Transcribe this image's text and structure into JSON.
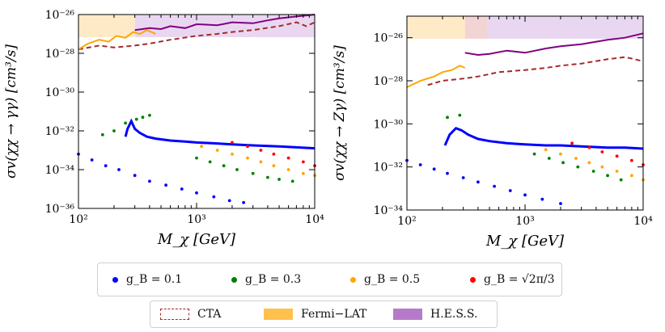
{
  "panels": [
    {
      "id": "left",
      "ylabel": "σv(χχ → γγ) [cm³/s]",
      "xlabel": "M_χ [GeV]",
      "x_ticks": [
        "10^2",
        "10^3",
        "10^4"
      ],
      "y_ticks": [
        "10^-26",
        "10^-28",
        "10^-30",
        "10^-32",
        "10^-34",
        "10^-36"
      ]
    },
    {
      "id": "right",
      "ylabel": "σv(χχ → Zγ) [cm³/s]",
      "xlabel": "M_χ [GeV]",
      "x_ticks": [
        "10^2",
        "10^3",
        "10^4"
      ],
      "y_ticks": [
        "10^-26",
        "10^-28",
        "10^-30",
        "10^-32",
        "10^-34"
      ]
    }
  ],
  "legend_top": [
    {
      "label": "g_B = 0.1",
      "color": "#0000ff"
    },
    {
      "label": "g_B = 0.3",
      "color": "#008000"
    },
    {
      "label": "g_B = 0.5",
      "color": "#ffa500"
    },
    {
      "label": "g_B = √2π/3",
      "color": "#ff0000"
    }
  ],
  "legend_bottom": [
    {
      "label": "CTA",
      "color": "#a52a2a"
    },
    {
      "label": "Fermi−LAT",
      "color": "#ffc04d"
    },
    {
      "label": "H.E.S.S.",
      "color": "#b57bc9"
    }
  ],
  "chart_data": [
    {
      "type": "line",
      "title": "",
      "xlabel": "M_χ [GeV]",
      "ylabel": "σv(χχ → γγ) [cm³/s]",
      "xscale": "log",
      "yscale": "log",
      "xlim": [
        100,
        10000
      ],
      "ylim_log10": [
        -36,
        -26
      ],
      "series": [
        {
          "name": "CTA",
          "style": "dashed",
          "color": "#a52a2a",
          "x": [
            100,
            150,
            200,
            300,
            400,
            600,
            1000,
            1500,
            2000,
            3000,
            5000,
            7000,
            8500,
            10000
          ],
          "log10_y": [
            -27.8,
            -27.6,
            -27.7,
            -27.6,
            -27.5,
            -27.3,
            -27.1,
            -27.0,
            -26.9,
            -26.8,
            -26.6,
            -26.4,
            -26.6,
            -26.4
          ]
        },
        {
          "name": "Fermi-LAT",
          "style": "solid",
          "color": "#ffa500",
          "x": [
            100,
            120,
            150,
            180,
            210,
            250,
            290,
            330,
            380,
            450
          ],
          "log10_y": [
            -27.8,
            -27.5,
            -27.3,
            -27.4,
            -27.1,
            -27.2,
            -26.9,
            -27.0,
            -26.8,
            -27.0
          ]
        },
        {
          "name": "H.E.S.S.",
          "style": "solid",
          "color": "#800080",
          "x": [
            300,
            400,
            500,
            600,
            800,
            1000,
            1500,
            2000,
            3000,
            4000,
            5000,
            7000,
            10000
          ],
          "log10_y": [
            -26.8,
            -26.7,
            -26.75,
            -26.6,
            -26.7,
            -26.5,
            -26.55,
            -26.4,
            -26.45,
            -26.3,
            -26.2,
            -26.1,
            -26.0
          ]
        },
        {
          "name": "g_B = 0.1 (line)",
          "style": "solid",
          "color": "#0000ff",
          "x": [
            250,
            260,
            280,
            300,
            330,
            380,
            450,
            600,
            800,
            1000,
            1500,
            2000,
            3000,
            5000,
            7000,
            10000
          ],
          "log10_y": [
            -32.3,
            -31.9,
            -31.5,
            -31.9,
            -32.1,
            -32.3,
            -32.4,
            -32.5,
            -32.55,
            -32.6,
            -32.65,
            -32.7,
            -32.75,
            -32.8,
            -32.85,
            -32.9
          ]
        },
        {
          "name": "g_B = 0.1 (dots)",
          "style": "dots",
          "color": "#0000ff",
          "x": [
            100,
            130,
            170,
            220,
            300,
            400,
            550,
            750,
            1000,
            1400,
            1900,
            2500
          ],
          "log10_y": [
            -33.2,
            -33.5,
            -33.8,
            -34.0,
            -34.3,
            -34.6,
            -34.8,
            -35.0,
            -35.2,
            -35.4,
            -35.6,
            -35.7
          ]
        },
        {
          "name": "g_B = 0.3",
          "style": "dots",
          "color": "#008000",
          "x": [
            160,
            200,
            250,
            310,
            350,
            400,
            1000,
            1300,
            1700,
            2200,
            3000,
            4000,
            5000,
            6500
          ],
          "log10_y": [
            -32.2,
            -32.0,
            -31.6,
            -31.4,
            -31.3,
            -31.2,
            -33.4,
            -33.6,
            -33.8,
            -34.0,
            -34.2,
            -34.4,
            -34.5,
            -34.6
          ]
        },
        {
          "name": "g_B = 0.5",
          "style": "dots",
          "color": "#ffa500",
          "x": [
            1100,
            1500,
            2000,
            2700,
            3500,
            4500,
            6000,
            8000,
            10000
          ],
          "log10_y": [
            -32.8,
            -33.0,
            -33.2,
            -33.4,
            -33.6,
            -33.8,
            -34.0,
            -34.2,
            -34.3
          ]
        },
        {
          "name": "g_B = √2π/3",
          "style": "dots",
          "color": "#ff0000",
          "x": [
            2000,
            2700,
            3500,
            4500,
            6000,
            8000,
            10000
          ],
          "log10_y": [
            -32.6,
            -32.8,
            -33.0,
            -33.2,
            -33.4,
            -33.6,
            -33.8
          ]
        }
      ]
    },
    {
      "type": "line",
      "title": "",
      "xlabel": "M_χ [GeV]",
      "ylabel": "σv(χχ → Zγ) [cm³/s]",
      "xscale": "log",
      "yscale": "log",
      "xlim": [
        100,
        10000
      ],
      "ylim_log10": [
        -34,
        -25
      ],
      "series": [
        {
          "name": "CTA",
          "style": "dashed",
          "color": "#a52a2a",
          "x": [
            150,
            200,
            300,
            400,
            600,
            1000,
            1500,
            2000,
            3000,
            5000,
            7000,
            8500,
            10000
          ],
          "log10_y": [
            -28.2,
            -28.0,
            -27.9,
            -27.8,
            -27.6,
            -27.5,
            -27.4,
            -27.3,
            -27.2,
            -27.0,
            -26.9,
            -27.0,
            -27.1
          ]
        },
        {
          "name": "Fermi-LAT",
          "style": "solid",
          "color": "#ffa500",
          "x": [
            100,
            130,
            170,
            200,
            240,
            280,
            310
          ],
          "log10_y": [
            -28.3,
            -28.0,
            -27.8,
            -27.6,
            -27.5,
            -27.3,
            -27.4
          ]
        },
        {
          "name": "H.E.S.S.",
          "style": "solid",
          "color": "#800080",
          "x": [
            310,
            400,
            500,
            700,
            1000,
            1500,
            2000,
            3000,
            5000,
            7000,
            10000
          ],
          "log10_y": [
            -26.7,
            -26.8,
            -26.75,
            -26.6,
            -26.7,
            -26.5,
            -26.4,
            -26.3,
            -26.1,
            -26.0,
            -25.8
          ]
        },
        {
          "name": "g_B = 0.1 (line)",
          "style": "solid",
          "color": "#0000ff",
          "x": [
            210,
            230,
            260,
            290,
            330,
            400,
            500,
            700,
            1000,
            1500,
            2000,
            3000,
            5000,
            7000,
            10000
          ],
          "log10_y": [
            -31.0,
            -30.5,
            -30.2,
            -30.3,
            -30.5,
            -30.7,
            -30.8,
            -30.9,
            -30.95,
            -31.0,
            -31.0,
            -31.05,
            -31.1,
            -31.1,
            -31.15
          ]
        },
        {
          "name": "g_B = 0.1 (dots)",
          "style": "dots",
          "color": "#0000ff",
          "x": [
            100,
            130,
            170,
            220,
            300,
            400,
            550,
            750,
            1000,
            1400,
            2000
          ],
          "log10_y": [
            -31.7,
            -31.9,
            -32.1,
            -32.3,
            -32.5,
            -32.7,
            -32.9,
            -33.1,
            -33.3,
            -33.5,
            -33.7
          ]
        },
        {
          "name": "g_B = 0.3",
          "style": "dots",
          "color": "#008000",
          "x": [
            220,
            280,
            1200,
            1600,
            2100,
            2800,
            3800,
            5000,
            6500
          ],
          "log10_y": [
            -29.7,
            -29.6,
            -31.4,
            -31.6,
            -31.8,
            -32.0,
            -32.2,
            -32.4,
            -32.6
          ]
        },
        {
          "name": "g_B = 0.5",
          "style": "dots",
          "color": "#ffa500",
          "x": [
            1500,
            2000,
            2700,
            3500,
            4500,
            6000,
            8000,
            10000
          ],
          "log10_y": [
            -31.2,
            -31.4,
            -31.6,
            -31.8,
            -32.0,
            -32.2,
            -32.4,
            -32.6
          ]
        },
        {
          "name": "g_B = √2π/3",
          "style": "dots",
          "color": "#ff0000",
          "x": [
            2500,
            3500,
            4500,
            6000,
            8000,
            10000
          ],
          "log10_y": [
            -30.9,
            -31.1,
            -31.3,
            -31.5,
            -31.7,
            -31.9
          ]
        }
      ]
    }
  ]
}
